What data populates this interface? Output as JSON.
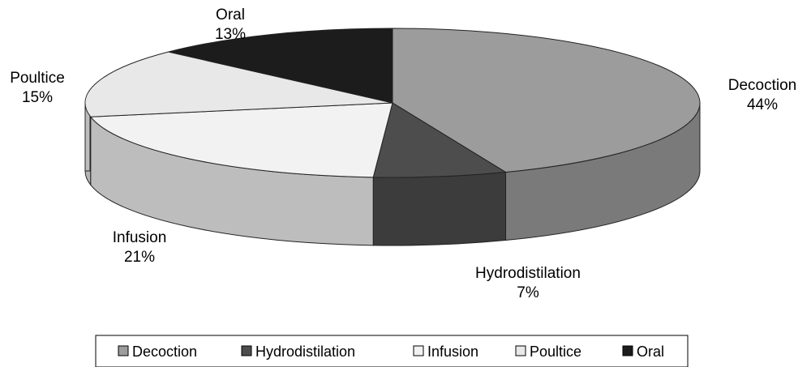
{
  "chart_data": {
    "type": "pie",
    "title": "",
    "categories": [
      "Decoction",
      "Hydrodistilation",
      "Infusion",
      "Poultice",
      "Oral"
    ],
    "values": [
      44,
      7,
      21,
      15,
      13
    ],
    "labels": {
      "Decoction": "44%",
      "Hydrodistilation": "7%",
      "Infusion": "21%",
      "Poultice": "15%",
      "Oral": "13%"
    },
    "colors": [
      "#9c9c9c",
      "#4d4d4d",
      "#f2f2f2",
      "#e8e8e8",
      "#1c1c1c"
    ],
    "style": "3d-perspective",
    "legend": {
      "position": "bottom",
      "items": [
        "Decoction",
        "Hydrodistilation",
        "Infusion",
        "Poultice",
        "Oral"
      ]
    }
  }
}
